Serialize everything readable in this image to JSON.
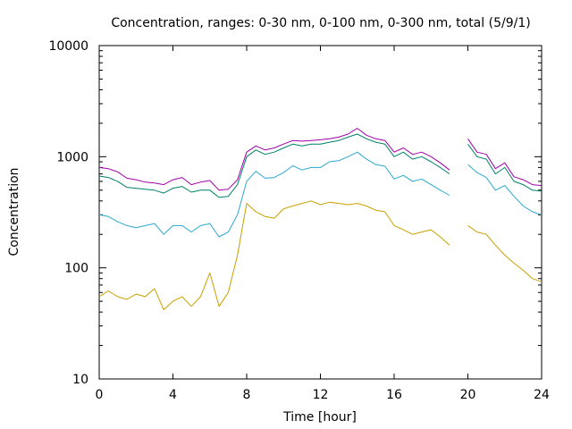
{
  "chart_data": {
    "type": "line",
    "title": "Concentration, ranges: 0-30 nm, 0-100 nm, 0-300 nm, total (5/9/1)",
    "xlabel": "Time [hour]",
    "ylabel": "Concentration",
    "xlim": [
      0,
      24
    ],
    "ylim": [
      10,
      10000
    ],
    "yscale": "log",
    "grid": false,
    "legend": "none",
    "xticks": [
      0,
      4,
      8,
      12,
      16,
      20,
      24
    ],
    "yticks": [
      10,
      100,
      1000,
      10000
    ],
    "x": [
      0,
      0.5,
      1,
      1.5,
      2,
      2.5,
      3,
      3.5,
      4,
      4.5,
      5,
      5.5,
      6,
      6.5,
      7,
      7.5,
      8,
      8.5,
      9,
      9.5,
      10,
      10.5,
      11,
      11.5,
      12,
      12.5,
      13,
      13.5,
      14,
      14.5,
      15,
      15.5,
      16,
      16.5,
      17,
      17.5,
      18,
      18.5,
      19,
      19.5,
      20,
      20.5,
      21,
      21.5,
      22,
      22.5,
      23,
      23.5,
      24
    ],
    "series": [
      {
        "color": "#c8a000",
        "values": [
          55,
          62,
          55,
          52,
          58,
          55,
          65,
          42,
          50,
          55,
          45,
          55,
          90,
          45,
          60,
          130,
          380,
          320,
          290,
          280,
          340,
          360,
          380,
          400,
          370,
          390,
          380,
          370,
          380,
          360,
          330,
          320,
          240,
          220,
          200,
          210,
          220,
          190,
          160,
          null,
          240,
          210,
          200,
          160,
          130,
          110,
          95,
          80,
          75
        ]
      },
      {
        "color": "#2aa8cc",
        "values": [
          300,
          290,
          260,
          240,
          230,
          240,
          250,
          200,
          240,
          240,
          210,
          240,
          250,
          190,
          210,
          300,
          600,
          740,
          640,
          650,
          720,
          830,
          760,
          800,
          800,
          900,
          920,
          1000,
          1100,
          950,
          850,
          820,
          630,
          680,
          600,
          630,
          560,
          500,
          450,
          null,
          850,
          720,
          650,
          500,
          550,
          440,
          360,
          320,
          300
        ]
      },
      {
        "color": "#00806a",
        "values": [
          670,
          650,
          600,
          530,
          520,
          510,
          500,
          470,
          520,
          540,
          480,
          500,
          500,
          430,
          440,
          560,
          1000,
          1150,
          1050,
          1100,
          1200,
          1300,
          1250,
          1300,
          1300,
          1350,
          1400,
          1500,
          1600,
          1450,
          1350,
          1300,
          1000,
          1100,
          950,
          1000,
          900,
          800,
          700,
          null,
          1300,
          1000,
          950,
          700,
          800,
          600,
          560,
          500,
          490
        ]
      },
      {
        "color": "#a000a8",
        "values": [
          800,
          780,
          730,
          640,
          620,
          590,
          580,
          560,
          620,
          650,
          560,
          590,
          610,
          500,
          510,
          620,
          1100,
          1250,
          1150,
          1200,
          1300,
          1400,
          1380,
          1400,
          1420,
          1450,
          1500,
          1600,
          1800,
          1560,
          1450,
          1400,
          1100,
          1200,
          1050,
          1100,
          1000,
          880,
          760,
          null,
          1450,
          1100,
          1050,
          780,
          880,
          660,
          620,
          560,
          550
        ]
      }
    ]
  }
}
